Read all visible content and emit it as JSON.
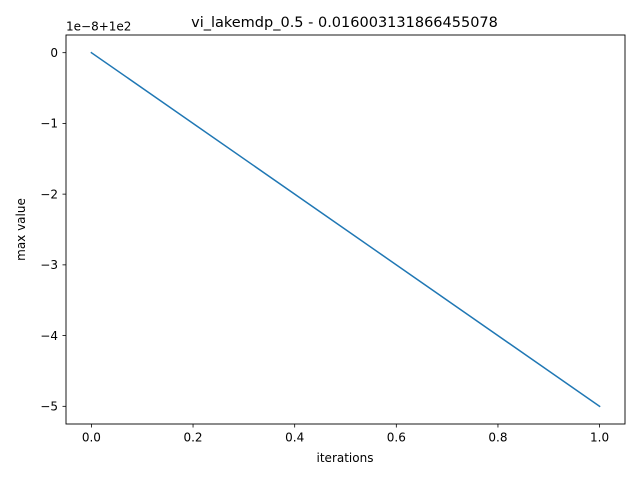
{
  "chart_data": {
    "type": "line",
    "title": "vi_lakemdp_0.5 - 0.016003131866455078",
    "xlabel": "iterations",
    "ylabel": "max value",
    "offset_text": "1e−8+1e2",
    "xlim": [
      -0.05,
      1.05
    ],
    "ylim": [
      -5.25,
      0.25
    ],
    "x_ticks": [
      0.0,
      0.2,
      0.4,
      0.6,
      0.8,
      1.0
    ],
    "x_tick_labels": [
      "0.0",
      "0.2",
      "0.4",
      "0.6",
      "0.8",
      "1.0"
    ],
    "y_ticks": [
      0,
      -1,
      -2,
      -3,
      -4,
      -5
    ],
    "y_tick_labels": [
      "0",
      "−1",
      "−2",
      "−3",
      "−4",
      "−5"
    ],
    "grid": false,
    "series": [
      {
        "color": "#1f77b4",
        "x": [
          0,
          1
        ],
        "y": [
          0,
          -5
        ]
      }
    ]
  }
}
